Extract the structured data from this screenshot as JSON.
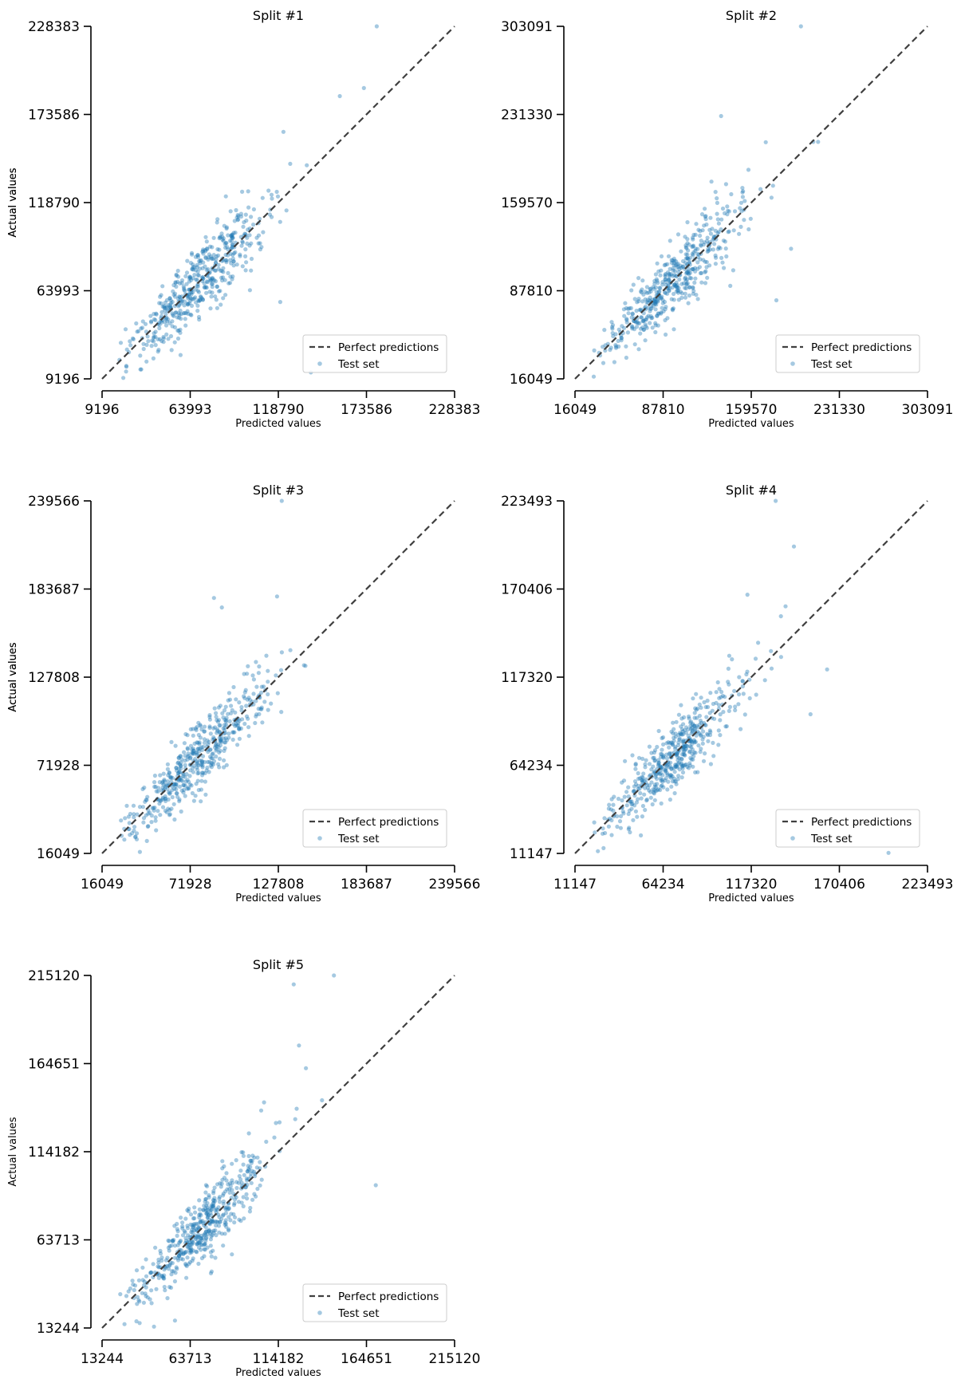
{
  "chart_data": [
    {
      "type": "scatter",
      "title": "Split #1",
      "xlabel": "Predicted values",
      "ylabel": "Actual values",
      "xlim": [
        9196,
        228383
      ],
      "ylim": [
        9196,
        228383
      ],
      "ticks": [
        "9196",
        "63993",
        "118790",
        "173586",
        "228383"
      ],
      "legend": {
        "line": "Perfect predictions",
        "points": "Test set"
      },
      "n_points": 480,
      "seed": 11,
      "outliers": [
        [
          180000,
          228383
        ],
        [
          139000,
          13200
        ],
        [
          120000,
          57000
        ],
        [
          157000,
          185000
        ],
        [
          172000,
          190000
        ],
        [
          58000,
          24000
        ],
        [
          20000,
          21000
        ]
      ]
    },
    {
      "type": "scatter",
      "title": "Split #2",
      "xlabel": "Predicted values",
      "ylabel": "Actual values",
      "xlim": [
        16049,
        303091
      ],
      "ylim": [
        16049,
        303091
      ],
      "ticks": [
        "16049",
        "87810",
        "159570",
        "231330",
        "303091"
      ],
      "legend": {
        "line": "Perfect predictions",
        "points": "Test set"
      },
      "n_points": 480,
      "seed": 23,
      "outliers": [
        [
          200000,
          303091
        ],
        [
          135000,
          230000
        ],
        [
          210000,
          209000
        ],
        [
          214000,
          209000
        ],
        [
          140000,
          150000
        ],
        [
          180000,
          80000
        ],
        [
          192000,
          122000
        ]
      ]
    },
    {
      "type": "scatter",
      "title": "Split #3",
      "xlabel": "Predicted values",
      "ylabel": "Actual values",
      "xlim": [
        16049,
        239566
      ],
      "ylim": [
        16049,
        239566
      ],
      "ticks": [
        "16049",
        "71928",
        "127808",
        "183687",
        "239566"
      ],
      "legend": {
        "line": "Perfect predictions",
        "points": "Test set"
      },
      "n_points": 480,
      "seed": 37,
      "outliers": [
        [
          130000,
          239566
        ],
        [
          87000,
          178000
        ],
        [
          127000,
          179000
        ],
        [
          92000,
          172000
        ],
        [
          40000,
          17000
        ],
        [
          145000,
          135000
        ]
      ]
    },
    {
      "type": "scatter",
      "title": "Split #4",
      "xlabel": "Predicted values",
      "ylabel": "Actual values",
      "xlim": [
        11147,
        223493
      ],
      "ylim": [
        11147,
        223493
      ],
      "ticks": [
        "11147",
        "64234",
        "117320",
        "170406",
        "223493"
      ],
      "legend": {
        "line": "Perfect predictions",
        "points": "Test set"
      },
      "n_points": 480,
      "seed": 53,
      "outliers": [
        [
          132000,
          223493
        ],
        [
          143000,
          196000
        ],
        [
          115000,
          167000
        ],
        [
          200000,
          11500
        ],
        [
          163000,
          122000
        ],
        [
          153000,
          95000
        ],
        [
          138000,
          160000
        ]
      ]
    },
    {
      "type": "scatter",
      "title": "Split #5",
      "xlabel": "Predicted values",
      "ylabel": "Actual values",
      "xlim": [
        13244,
        215120
      ],
      "ylim": [
        13244,
        215120
      ],
      "ticks": [
        "13244",
        "63713",
        "114182",
        "164651",
        "215120"
      ],
      "legend": {
        "line": "Perfect predictions",
        "points": "Test set"
      },
      "n_points": 480,
      "seed": 71,
      "outliers": [
        [
          146000,
          215120
        ],
        [
          123000,
          210000
        ],
        [
          126000,
          175000
        ],
        [
          130000,
          162000
        ],
        [
          170000,
          95000
        ],
        [
          43000,
          14000
        ],
        [
          55000,
          17500
        ]
      ]
    }
  ],
  "colors": {
    "points": "#1f77b4",
    "diagonal": "#404040",
    "axis": "#000000",
    "legend_border": "#cccccc"
  }
}
